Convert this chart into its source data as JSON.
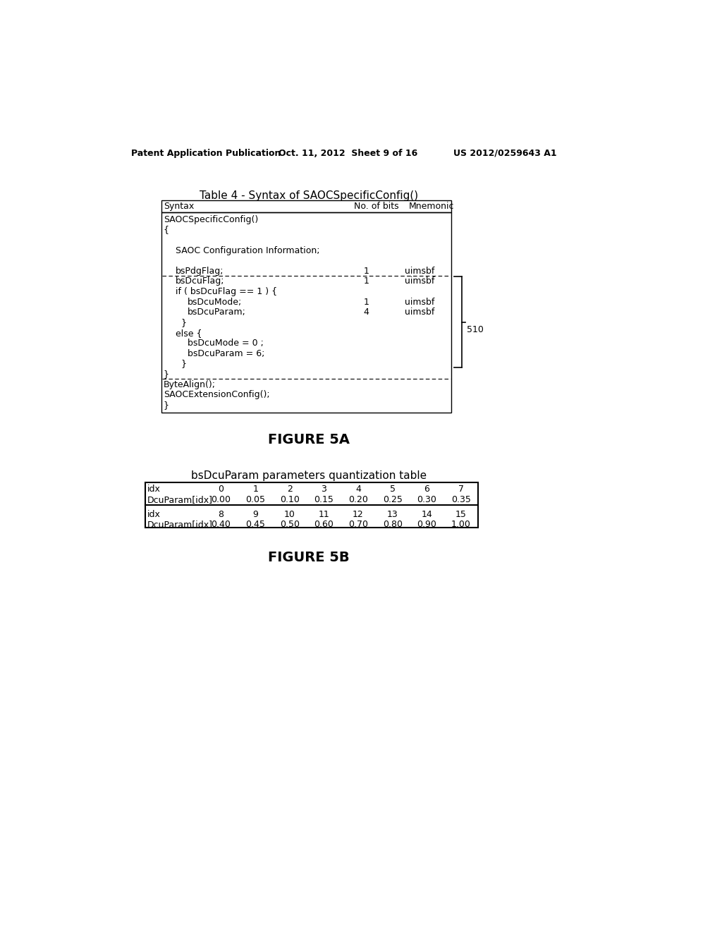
{
  "header_left": "Patent Application Publication",
  "header_middle": "Oct. 11, 2012  Sheet 9 of 16",
  "header_right": "US 2012/0259643 A1",
  "table4_title": "Table 4 - Syntax of SAOCSpecificConfig()",
  "table4_col1_header": "Syntax",
  "table4_col2_header": "No. of bits",
  "table4_col3_header": "Mnemonic",
  "table4_content": [
    {
      "indent": 0,
      "text": "SAOCSpecificConfig()",
      "bits": "",
      "mnemonic": "",
      "dotted_below": false
    },
    {
      "indent": 0,
      "text": "{",
      "bits": "",
      "mnemonic": "",
      "dotted_below": false
    },
    {
      "indent": 1,
      "text": "",
      "bits": "",
      "mnemonic": "",
      "dotted_below": false
    },
    {
      "indent": 1,
      "text": "SAOC Configuration Information;",
      "bits": "",
      "mnemonic": "",
      "dotted_below": false
    },
    {
      "indent": 1,
      "text": "",
      "bits": "",
      "mnemonic": "",
      "dotted_below": false
    },
    {
      "indent": 1,
      "text": "bsPdgFlag;",
      "bits": "1",
      "mnemonic": "uimsbf",
      "dotted_below": true
    },
    {
      "indent": 1,
      "text": "bsDcuFlag;",
      "bits": "1",
      "mnemonic": "uimsbf",
      "dotted_below": false,
      "bracket_start": true
    },
    {
      "indent": 1,
      "text": "if ( bsDcuFlag == 1 ) {",
      "bits": "",
      "mnemonic": "",
      "dotted_below": false
    },
    {
      "indent": 2,
      "text": "bsDcuMode;",
      "bits": "1",
      "mnemonic": "uimsbf",
      "dotted_below": false
    },
    {
      "indent": 2,
      "text": "bsDcuParam;",
      "bits": "4",
      "mnemonic": "uimsbf",
      "dotted_below": false
    },
    {
      "indent": 1,
      "text": "  }",
      "bits": "",
      "mnemonic": "",
      "dotted_below": false
    },
    {
      "indent": 1,
      "text": "else {",
      "bits": "",
      "mnemonic": "",
      "dotted_below": false
    },
    {
      "indent": 2,
      "text": "bsDcuMode = 0 ;",
      "bits": "",
      "mnemonic": "",
      "dotted_below": false
    },
    {
      "indent": 2,
      "text": "bsDcuParam = 6;",
      "bits": "",
      "mnemonic": "",
      "dotted_below": false
    },
    {
      "indent": 1,
      "text": "  }",
      "bits": "",
      "mnemonic": "",
      "dotted_below": false,
      "bracket_end": true
    },
    {
      "indent": 0,
      "text": "}",
      "bits": "",
      "mnemonic": "",
      "dotted_below": true
    },
    {
      "indent": 0,
      "text": "ByteAlign();",
      "bits": "",
      "mnemonic": "",
      "dotted_below": false
    },
    {
      "indent": 0,
      "text": "SAOCExtensionConfig();",
      "bits": "",
      "mnemonic": "",
      "dotted_below": false
    },
    {
      "indent": 0,
      "text": "}",
      "bits": "",
      "mnemonic": "",
      "dotted_below": false
    }
  ],
  "bracket_label": "510",
  "figure5a_label": "FIGURE 5A",
  "table5b_title": "bsDcuParam parameters quantization table",
  "table5b_row1": [
    "idx",
    "0",
    "1",
    "2",
    "3",
    "4",
    "5",
    "6",
    "7"
  ],
  "table5b_row2": [
    "DcuParam[idx]",
    "0.00",
    "0.05",
    "0.10",
    "0.15",
    "0.20",
    "0.25",
    "0.30",
    "0.35"
  ],
  "table5b_row3": [
    "idx",
    "8",
    "9",
    "10",
    "11",
    "12",
    "13",
    "14",
    "15"
  ],
  "table5b_row4": [
    "DcuParam[idx]",
    "0.40",
    "0.45",
    "0.50",
    "0.60",
    "0.70",
    "0.80",
    "0.90",
    "1.00"
  ],
  "figure5b_label": "FIGURE 5B",
  "bg_color": "#ffffff",
  "text_color": "#000000",
  "border_color": "#000000"
}
